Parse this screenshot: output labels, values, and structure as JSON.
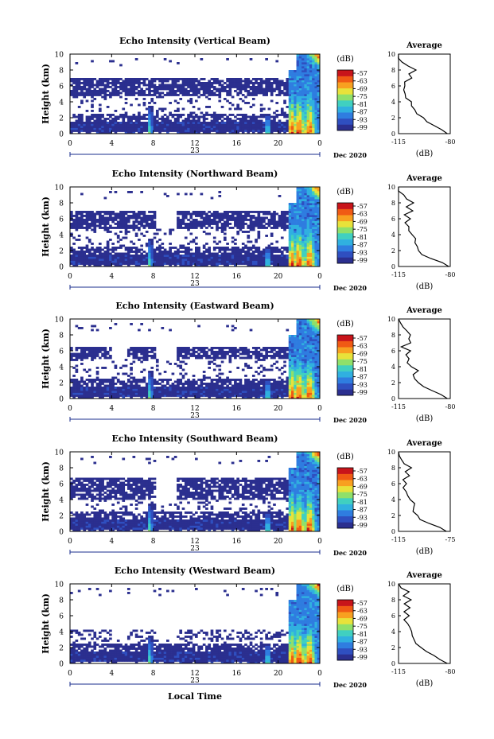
{
  "colorbar": {
    "unit": "(dB)",
    "ticks": [
      "-57",
      "-63",
      "-69",
      "-75",
      "-81",
      "-87",
      "-93",
      "-99"
    ],
    "colors": [
      "#2b2f8f",
      "#2f4fc0",
      "#2f7de0",
      "#30b0e0",
      "#40d0c0",
      "#8fe06a",
      "#e8e23a",
      "#f8a020",
      "#f05a14",
      "#c8141a"
    ]
  },
  "x_axis": {
    "ticks": [
      "0",
      "4",
      "8",
      "12",
      "16",
      "20",
      "0"
    ],
    "day_label": "23",
    "month_label": "Dec 2020",
    "xlabel": "Local Time"
  },
  "ylabel": "Height (km)",
  "avg_title": "Average",
  "avg_unit": "(dB)",
  "height_ticks": [
    "0",
    "2",
    "4",
    "6",
    "8",
    "10"
  ],
  "chart_data": [
    {
      "type": "heatmap",
      "title": "Echo Intensity (Vertical Beam)",
      "xlabel": "",
      "ylabel": "Height (km)",
      "xlim": [
        0,
        24
      ],
      "ylim": [
        0,
        10
      ],
      "clim": [
        -99,
        -57
      ],
      "avg_profile": {
        "xlim": [
          -115,
          -80
        ],
        "xticks": [
          "-115",
          "-80"
        ],
        "height_km": [
          0,
          0.5,
          1,
          1.5,
          2,
          2.5,
          3,
          3.5,
          4,
          4.5,
          5,
          5.5,
          6,
          6.5,
          7,
          7.5,
          8,
          8.5,
          9,
          9.5,
          10
        ],
        "values_db": [
          -82,
          -85,
          -92,
          -96,
          -99,
          -102,
          -104,
          -106,
          -107,
          -109,
          -110,
          -111,
          -110,
          -112,
          -106,
          -108,
          -104,
          -108,
          -112,
          -114,
          -115
        ]
      }
    },
    {
      "type": "heatmap",
      "title": "Echo Intensity (Northward Beam)",
      "xlabel": "",
      "ylabel": "Height (km)",
      "xlim": [
        0,
        24
      ],
      "ylim": [
        0,
        10
      ],
      "clim": [
        -99,
        -57
      ],
      "avg_profile": {
        "xlim": [
          -115,
          -80
        ],
        "xticks": [
          "-115",
          "-80"
        ],
        "height_km": [
          0,
          0.5,
          1,
          1.5,
          2,
          2.5,
          3,
          3.5,
          4,
          4.5,
          5,
          5.5,
          6,
          6.5,
          7,
          7.5,
          8,
          8.5,
          9,
          9.5,
          10
        ],
        "values_db": [
          -81,
          -86,
          -93,
          -98,
          -101,
          -103,
          -104,
          -103,
          -106,
          -108,
          -109,
          -110,
          -108,
          -111,
          -106,
          -109,
          -105,
          -109,
          -112,
          -114,
          -115
        ]
      }
    },
    {
      "type": "heatmap",
      "title": "Echo Intensity (Eastward Beam)",
      "xlabel": "",
      "ylabel": "Height (km)",
      "xlim": [
        0,
        24
      ],
      "ylim": [
        0,
        10
      ],
      "clim": [
        -99,
        -57
      ],
      "avg_profile": {
        "xlim": [
          -115,
          -80
        ],
        "xticks": [
          "-115",
          "-80"
        ],
        "height_km": [
          0,
          0.5,
          1,
          1.5,
          2,
          2.5,
          3,
          3.5,
          4,
          4.5,
          5,
          5.5,
          6,
          6.5,
          7,
          7.5,
          8,
          8.5,
          9,
          9.5,
          10
        ],
        "values_db": [
          -82,
          -86,
          -93,
          -98,
          -101,
          -103,
          -104,
          -102,
          -106,
          -108,
          -109,
          -111,
          -108,
          -112,
          -106,
          -109,
          -106,
          -110,
          -112,
          -114,
          -115
        ]
      }
    },
    {
      "type": "heatmap",
      "title": "Echo Intensity (Southward Beam)",
      "xlabel": "",
      "ylabel": "Height (km)",
      "xlim": [
        0,
        24
      ],
      "ylim": [
        0,
        10
      ],
      "clim": [
        -99,
        -57
      ],
      "avg_profile": {
        "xlim": [
          -115,
          -75
        ],
        "xticks": [
          "-115",
          "-75"
        ],
        "height_km": [
          0,
          0.5,
          1,
          1.5,
          2,
          2.5,
          3,
          3.5,
          4,
          4.5,
          5,
          5.5,
          6,
          6.5,
          7,
          7.5,
          8,
          8.5,
          9,
          9.5,
          10
        ],
        "values_db": [
          -78,
          -84,
          -92,
          -98,
          -100,
          -103,
          -104,
          -102,
          -106,
          -108,
          -109,
          -111,
          -108,
          -112,
          -106,
          -110,
          -106,
          -110,
          -112,
          -114,
          -115
        ]
      }
    },
    {
      "type": "heatmap",
      "title": "Echo Intensity (Westward Beam)",
      "xlabel": "Local Time",
      "ylabel": "Height (km)",
      "xlim": [
        0,
        24
      ],
      "ylim": [
        0,
        10
      ],
      "clim": [
        -99,
        -57
      ],
      "avg_profile": {
        "xlim": [
          -115,
          -80
        ],
        "xticks": [
          "-115",
          "-80"
        ],
        "height_km": [
          0,
          0.5,
          1,
          1.5,
          2,
          2.5,
          3,
          3.5,
          4,
          4.5,
          5,
          5.5,
          6,
          6.5,
          7,
          7.5,
          8,
          8.5,
          9,
          9.5,
          10
        ],
        "values_db": [
          -82,
          -86,
          -92,
          -97,
          -100,
          -103,
          -104,
          -105,
          -107,
          -108,
          -110,
          -111,
          -109,
          -112,
          -107,
          -110,
          -106,
          -111,
          -108,
          -113,
          -115
        ]
      }
    }
  ]
}
